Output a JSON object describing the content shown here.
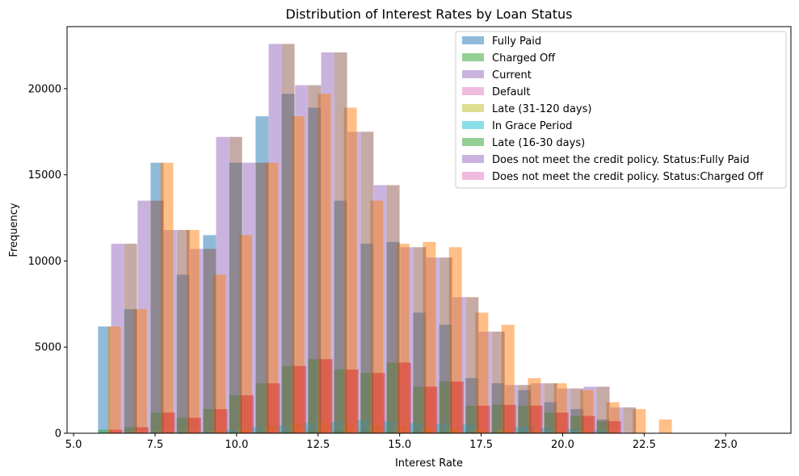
{
  "chart_data": {
    "type": "bar",
    "title": "Distribution of Interest Rates by Loan Status",
    "xlabel": "Interest Rate",
    "ylabel": "Frequency",
    "xlim": [
      4.8,
      27.0
    ],
    "ylim": [
      0,
      23600
    ],
    "xticks": [
      5.0,
      7.5,
      10.0,
      12.5,
      15.0,
      17.5,
      20.0,
      22.5,
      25.0
    ],
    "xtick_labels": [
      "5.0",
      "7.5",
      "10.0",
      "12.5",
      "15.0",
      "17.5",
      "20.0",
      "22.5",
      "25.0"
    ],
    "yticks": [
      0,
      5000,
      10000,
      15000,
      20000
    ],
    "ytick_labels": [
      "0",
      "5000",
      "10000",
      "15000",
      "20000"
    ],
    "legend_position": "top-right",
    "series_note_offset": "bars of each series are drawn with increasing x offset",
    "series": [
      {
        "name": "Fully Paid",
        "color": "#1f77b4",
        "x": [
          5.95,
          6.75,
          7.56,
          8.36,
          9.17,
          9.97,
          10.78,
          11.58,
          12.39,
          13.19,
          14.0,
          14.8,
          15.61,
          16.41,
          17.22,
          18.02,
          18.83,
          19.63,
          20.44,
          21.24,
          22.05,
          22.85,
          23.66,
          24.46,
          25.27
        ],
        "values": [
          6200,
          7200,
          15700,
          9200,
          11500,
          15700,
          18400,
          19700,
          18900,
          13500,
          11000,
          11100,
          7000,
          6300,
          3200,
          2900,
          2500,
          1800,
          1400,
          800,
          0,
          0,
          0,
          0,
          0
        ]
      },
      {
        "name": "Charged Off",
        "color": "#2ca02c",
        "x": [
          5.95,
          6.75,
          7.56,
          8.36,
          9.17,
          9.97,
          10.78,
          11.58,
          12.39,
          13.19,
          14.0,
          14.8,
          15.61,
          16.41,
          17.22,
          18.02,
          18.83,
          19.63,
          20.44,
          21.24,
          22.05,
          22.85,
          23.66,
          24.46,
          25.27
        ],
        "values": [
          200,
          350,
          1200,
          900,
          1400,
          2200,
          2900,
          3900,
          4300,
          3700,
          3500,
          4100,
          2700,
          3000,
          1600,
          1650,
          1600,
          1200,
          1000,
          700,
          0,
          0,
          0,
          0,
          0
        ]
      },
      {
        "name": "Current",
        "color": "#9467bd",
        "x": [
          6.35,
          7.16,
          7.96,
          8.77,
          9.57,
          10.38,
          11.18,
          11.99,
          12.79,
          13.6,
          14.4,
          15.21,
          16.01,
          16.82,
          17.62,
          18.43,
          19.23,
          20.04,
          20.84,
          21.65,
          22.45,
          23.26,
          24.06,
          24.87,
          25.67
        ],
        "values": [
          11000,
          13500,
          11800,
          10700,
          17200,
          15700,
          22600,
          20200,
          22100,
          17500,
          14400,
          10800,
          10200,
          7900,
          5900,
          2800,
          2900,
          2600,
          2700,
          1500,
          0,
          0,
          0,
          0,
          0
        ]
      },
      {
        "name": "Default",
        "color": "#e377c2",
        "x": [
          6.05,
          6.85,
          7.66,
          8.46,
          9.27,
          10.07,
          10.88,
          11.68,
          12.49,
          13.29,
          14.1,
          14.9,
          15.71,
          16.51,
          17.32,
          18.12,
          18.93,
          19.73,
          20.54,
          21.34,
          22.15,
          22.95,
          23.76,
          24.56,
          25.37
        ],
        "values": [
          0,
          5,
          5,
          5,
          10,
          10,
          15,
          15,
          15,
          15,
          10,
          10,
          10,
          10,
          5,
          5,
          5,
          5,
          5,
          0,
          0,
          0,
          0,
          0,
          0
        ]
      },
      {
        "name": "Late (31-120 days)",
        "color": "#bcbd22",
        "x": [
          6.15,
          6.95,
          7.76,
          8.56,
          9.37,
          10.17,
          10.98,
          11.78,
          12.59,
          13.39,
          14.2,
          15.0,
          15.81,
          16.61,
          17.42,
          18.22,
          19.03,
          19.83,
          20.64,
          21.44,
          22.25,
          23.05,
          23.86,
          24.66,
          25.47
        ],
        "values": [
          20,
          40,
          80,
          90,
          150,
          250,
          400,
          550,
          600,
          550,
          500,
          450,
          350,
          300,
          250,
          200,
          180,
          150,
          120,
          80,
          0,
          0,
          0,
          0,
          0
        ]
      },
      {
        "name": "In Grace Period",
        "color": "#17becf",
        "x": [
          5.85,
          6.65,
          7.46,
          8.26,
          9.07,
          9.87,
          10.68,
          11.48,
          12.29,
          13.09,
          13.9,
          14.7,
          15.51,
          16.31,
          17.12,
          18.92,
          18.73,
          19.53,
          20.34,
          21.14,
          21.95,
          22.75,
          23.56,
          24.36,
          25.17
        ],
        "values": [
          10,
          20,
          40,
          50,
          100,
          200,
          350,
          450,
          600,
          650,
          750,
          700,
          600,
          550,
          500,
          400,
          350,
          300,
          250,
          150,
          0,
          0,
          0,
          0,
          0
        ]
      },
      {
        "name": "Late (16-30 days)",
        "color": "#2ca02c",
        "x": [
          5.9,
          6.7,
          7.51,
          8.31,
          9.12,
          9.92,
          10.73,
          11.53,
          12.34,
          13.14,
          13.95,
          14.75,
          15.56,
          16.36,
          17.17,
          17.97,
          18.78,
          19.58,
          20.39,
          21.19,
          22.0,
          22.8,
          23.61,
          24.41,
          25.22
        ],
        "values": [
          5,
          10,
          15,
          20,
          30,
          50,
          80,
          100,
          120,
          130,
          120,
          110,
          100,
          90,
          80,
          70,
          60,
          50,
          40,
          20,
          0,
          0,
          0,
          0,
          0
        ]
      },
      {
        "name": "Does not meet the credit policy. Status:Fully Paid",
        "color": "#9467bd",
        "x": [
          6.1,
          6.9,
          7.71,
          8.51,
          9.32,
          10.12,
          10.93,
          11.73,
          12.54,
          13.34,
          14.15,
          14.95,
          15.76,
          16.56,
          17.37,
          18.17,
          18.98,
          19.78,
          20.59,
          21.39,
          22.2,
          23.0,
          23.81,
          24.61,
          25.42
        ],
        "values": [
          5,
          10,
          15,
          20,
          25,
          30,
          40,
          45,
          45,
          40,
          35,
          30,
          25,
          20,
          15,
          10,
          10,
          5,
          5,
          0,
          0,
          0,
          0,
          0,
          0
        ]
      },
      {
        "name": "Does not meet the credit policy. Status:Charged Off",
        "color": "#e377c2",
        "x": [
          6.2,
          7.0,
          7.81,
          8.61,
          9.42,
          10.22,
          11.03,
          11.83,
          12.64,
          13.44,
          14.25,
          15.05,
          15.86,
          16.66,
          17.47,
          18.27,
          19.08,
          19.88,
          20.69,
          21.49,
          22.3,
          23.1,
          23.91,
          24.71,
          25.52
        ],
        "values": [
          2,
          4,
          6,
          8,
          10,
          12,
          14,
          14,
          12,
          10,
          8,
          6,
          5,
          4,
          3,
          2,
          2,
          1,
          1,
          0,
          0,
          0,
          0,
          0,
          0
        ]
      }
    ],
    "overlay_series": [
      {
        "color": "#ff7f0e",
        "x": [
          6.25,
          7.05,
          7.86,
          8.66,
          9.47,
          10.27,
          11.08,
          11.88,
          12.69,
          13.49,
          14.3,
          15.1,
          15.91,
          16.71,
          17.52,
          18.32,
          19.13,
          19.93,
          20.74,
          21.54,
          22.35,
          23.15,
          23.96,
          24.76,
          25.57
        ],
        "values": [
          6200,
          7200,
          15700,
          11800,
          9200,
          11500,
          15700,
          18400,
          19700,
          18900,
          13500,
          11000,
          11100,
          10800,
          7000,
          6300,
          3200,
          2900,
          2500,
          1800,
          1400,
          800,
          0,
          0,
          0
        ]
      },
      {
        "color": "#d62728",
        "x": [
          6.3,
          7.1,
          7.91,
          8.71,
          9.52,
          10.32,
          11.13,
          11.93,
          12.74,
          13.54,
          14.35,
          15.15,
          15.96,
          16.76,
          17.57,
          18.37,
          19.18,
          19.98,
          20.79,
          21.59,
          22.4,
          23.2,
          24.01,
          24.81,
          25.62
        ],
        "values": [
          200,
          350,
          1200,
          900,
          1400,
          2200,
          2900,
          3900,
          4300,
          3700,
          3500,
          4100,
          2700,
          3000,
          1600,
          1650,
          1600,
          1200,
          1000,
          700,
          0,
          0,
          0,
          0,
          0
        ]
      },
      {
        "color": "#8c564b",
        "x": [
          6.75,
          7.56,
          8.36,
          9.17,
          9.97,
          10.78,
          11.58,
          12.39,
          13.19,
          14.0,
          14.8,
          15.61,
          16.41,
          17.22,
          18.02,
          18.83,
          19.63,
          20.44,
          21.24,
          22.05,
          22.85,
          23.66,
          24.46,
          25.27,
          26.0
        ],
        "values": [
          11000,
          13500,
          11800,
          10700,
          17200,
          15700,
          22600,
          20200,
          22100,
          17500,
          14400,
          10800,
          10200,
          7900,
          5900,
          2800,
          2900,
          2600,
          2700,
          1500,
          0,
          0,
          0,
          0,
          0
        ]
      }
    ]
  }
}
